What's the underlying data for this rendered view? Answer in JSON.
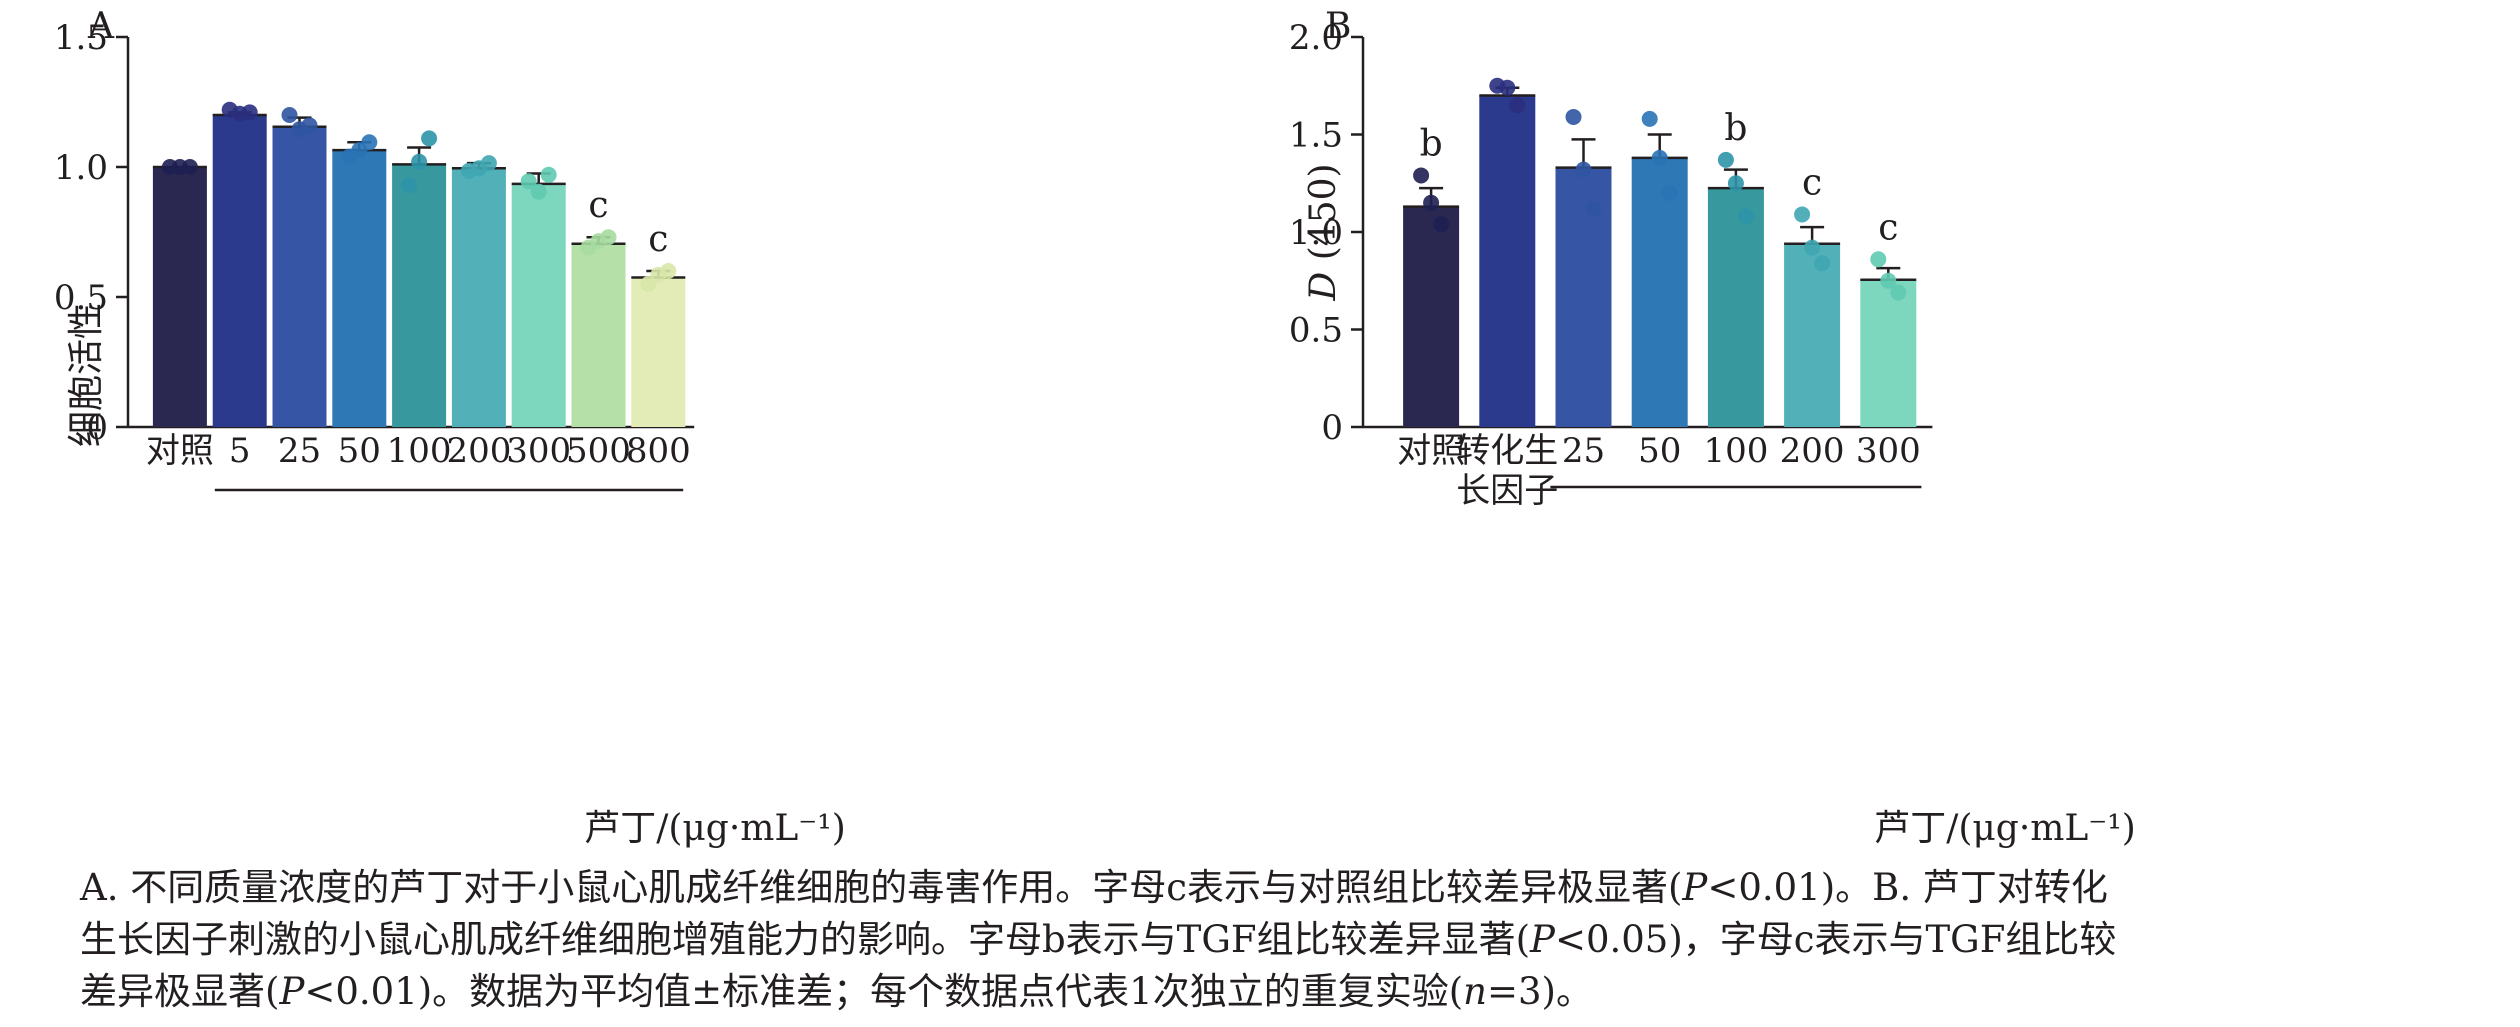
{
  "colors": {
    "axis": "#231f20",
    "point": [
      "#1e1f52",
      "#2a2f7e",
      "#2f55a2",
      "#2a73b5",
      "#2d93a8",
      "#3fa6b2",
      "#5fcab0",
      "#a6dca0",
      "#d8e7a8"
    ]
  },
  "chart_data": [
    {
      "panel": "A",
      "type": "bar",
      "ylabel": "细胞活性",
      "ylim": [
        0,
        1.5
      ],
      "yticks": [
        0,
        0.5,
        1.0,
        1.5
      ],
      "ytick_labels": [
        "0",
        "0.5",
        "1.0",
        "1.5"
      ],
      "categories": [
        "对照",
        "5",
        "25",
        "50",
        "100",
        "200",
        "300",
        "500",
        "800"
      ],
      "xlabel": "芦丁/(μg·mL⁻¹)",
      "bracket_from": 1,
      "bracket_to": 8,
      "values": [
        1.0,
        1.2,
        1.155,
        1.065,
        1.01,
        0.995,
        0.935,
        0.705,
        0.575
      ],
      "errors": [
        0,
        0.01,
        0.035,
        0.03,
        0.065,
        0.02,
        0.04,
        0.025,
        0.025
      ],
      "points": [
        [
          1.0,
          1.0,
          1.0
        ],
        [
          1.22,
          1.205,
          1.21
        ],
        [
          1.2,
          1.145,
          1.16
        ],
        [
          1.04,
          1.065,
          1.095
        ],
        [
          0.93,
          1.02,
          1.11
        ],
        [
          0.985,
          0.995,
          1.015
        ],
        [
          0.945,
          0.905,
          0.97
        ],
        [
          0.69,
          0.715,
          0.73
        ],
        [
          0.55,
          0.585,
          0.6
        ]
      ],
      "bar_colors": [
        "#2a2851",
        "#2b3a8c",
        "#3656a5",
        "#2f78b6",
        "#37989e",
        "#52b0b8",
        "#7dd6be",
        "#b5e0a8",
        "#e3ebb6"
      ],
      "annotations": [
        "",
        "",
        "",
        "",
        "",
        "",
        "",
        "c",
        "c"
      ]
    },
    {
      "panel": "B",
      "type": "bar",
      "ylabel": "D (450)",
      "ylim": [
        0,
        2.0
      ],
      "yticks": [
        0,
        0.5,
        1.0,
        1.5,
        2.0
      ],
      "ytick_labels": [
        "0",
        "0.5",
        "1.0",
        "1.5",
        "2.0"
      ],
      "categories": [
        "对照",
        "转化生长因子",
        "25",
        "50",
        "100",
        "200",
        "300"
      ],
      "category_lines": [
        [
          "对照"
        ],
        [
          "转化生",
          "长因子"
        ],
        [
          "25"
        ],
        [
          "50"
        ],
        [
          "100"
        ],
        [
          "200"
        ],
        [
          "300"
        ]
      ],
      "xlabel": "芦丁/(μg·mL⁻¹)",
      "bracket_from": 2,
      "bracket_to": 6,
      "values": [
        1.13,
        1.7,
        1.33,
        1.38,
        1.225,
        0.94,
        0.755
      ],
      "errors": [
        0.095,
        0.04,
        0.145,
        0.12,
        0.095,
        0.085,
        0.06
      ],
      "points": [
        [
          1.29,
          1.15,
          1.04
        ],
        [
          1.75,
          1.74,
          1.65
        ],
        [
          1.59,
          1.32,
          1.12
        ],
        [
          1.58,
          1.38,
          1.2
        ],
        [
          1.37,
          1.25,
          1.08
        ],
        [
          1.09,
          0.92,
          0.84
        ],
        [
          0.86,
          0.75,
          0.69
        ]
      ],
      "bar_colors": [
        "#2a2851",
        "#2b3a8c",
        "#3656a5",
        "#2f78b6",
        "#37989e",
        "#52b0b8",
        "#7dd6be"
      ],
      "annotations": [
        "b",
        "",
        "",
        "",
        "b",
        "c",
        "c"
      ]
    }
  ],
  "caption": {
    "line1_a": "A. 不同质量浓度的芦丁对于小鼠心肌成纤维细胞的毒害作用。字母c表示与对照组比较差异极显著(",
    "line1_p": "P",
    "line1_b": "<0.01)。B. 芦丁对转化",
    "line2_a": "生长因子刺激的小鼠心肌成纤维细胞增殖能力的影响。字母b表示与TGF组比较差异显著(",
    "line2_p": "P",
    "line2_b": "<0.05)，字母c表示与TGF组比较",
    "line3_a": "差异极显著(",
    "line3_p": "P",
    "line3_b": "<0.01)。数据为平均值±标准差；每个数据点代表1次独立的重复实验(",
    "line3_n": "n",
    "line3_c": "=3)。"
  }
}
